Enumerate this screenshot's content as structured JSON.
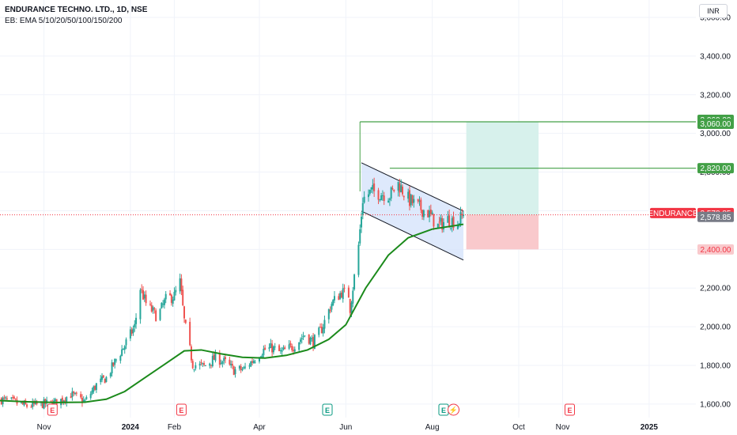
{
  "header": {
    "title": "ENDURANCE TECHNO. LTD., 1D, NSE",
    "indicator": "EB: EMA 5/10/20/50/100/150/200",
    "currency": "INR"
  },
  "colors": {
    "up": "#26a69a",
    "down": "#ef5350",
    "ema": "#1b8a1b",
    "target_line": "#43a047",
    "profit_zone": "#d7f1ec",
    "loss_zone": "#f9c9cc",
    "channel_fill": "#d6e4fb",
    "label_green": "#43a047",
    "label_red": "#f23645",
    "label_grey": "#787b86",
    "earnings_red": "#f23645",
    "earnings_green": "#089981"
  },
  "chart_data": {
    "type": "candlestick",
    "symbol": "ENDURANCE",
    "y_axis": {
      "ticks": [
        1600,
        1800,
        2000,
        2200,
        2400,
        2600,
        2800,
        3000,
        3200,
        3400,
        3600
      ],
      "tick_labels": [
        "1,600.00",
        "1,800.00",
        "2,000.00",
        "2,200.00",
        "2,400.00",
        "2,600.00",
        "2,800.00",
        "3,000.00",
        "3,200.00",
        "3,400.00",
        "3,600.00"
      ],
      "range": [
        1530,
        3690
      ]
    },
    "x_axis": {
      "labels": [
        "Nov",
        "2024",
        "Feb",
        "Apr",
        "Jun",
        "Aug",
        "Oct",
        "Nov",
        "2025"
      ],
      "label_dates": [
        "2023-11-01",
        "2024-01-01",
        "2024-02-01",
        "2024-04-01",
        "2024-06-01",
        "2024-08-01",
        "2024-10-01",
        "2024-11-01",
        "2025-01-01"
      ],
      "bold_labels": [
        "2024",
        "2025"
      ],
      "range": [
        "2023-10-01",
        "2025-02-03"
      ]
    },
    "close_path": [
      [
        "2023-10-01",
        1625
      ],
      [
        "2023-10-10",
        1612
      ],
      [
        "2023-10-20",
        1590
      ],
      [
        "2023-10-31",
        1600
      ],
      [
        "2023-11-10",
        1608
      ],
      [
        "2023-11-20",
        1650
      ],
      [
        "2023-11-30",
        1612
      ],
      [
        "2023-12-08",
        1700
      ],
      [
        "2023-12-15",
        1735
      ],
      [
        "2023-12-22",
        1830
      ],
      [
        "2023-12-28",
        1905
      ],
      [
        "2024-01-04",
        2000
      ],
      [
        "2024-01-08",
        2200
      ],
      [
        "2024-01-12",
        2120
      ],
      [
        "2024-01-20",
        2050
      ],
      [
        "2024-01-26",
        2140
      ],
      [
        "2024-02-01",
        2160
      ],
      [
        "2024-02-05",
        2230
      ],
      [
        "2024-02-08",
        2030
      ],
      [
        "2024-02-14",
        1805
      ],
      [
        "2024-02-22",
        1795
      ],
      [
        "2024-03-01",
        1840
      ],
      [
        "2024-03-08",
        1815
      ],
      [
        "2024-03-14",
        1775
      ],
      [
        "2024-03-21",
        1780
      ],
      [
        "2024-03-28",
        1830
      ],
      [
        "2024-04-04",
        1880
      ],
      [
        "2024-04-10",
        1890
      ],
      [
        "2024-04-16",
        1865
      ],
      [
        "2024-04-25",
        1900
      ],
      [
        "2024-05-03",
        1960
      ],
      [
        "2024-05-09",
        1920
      ],
      [
        "2024-05-15",
        1990
      ],
      [
        "2024-05-22",
        2120
      ],
      [
        "2024-05-29",
        2180
      ],
      [
        "2024-06-03",
        2165
      ],
      [
        "2024-06-04",
        2095
      ],
      [
        "2024-06-10",
        2420
      ],
      [
        "2024-06-13",
        2660
      ],
      [
        "2024-06-19",
        2700
      ],
      [
        "2024-06-26",
        2690
      ],
      [
        "2024-07-02",
        2680
      ],
      [
        "2024-07-08",
        2740
      ],
      [
        "2024-07-15",
        2660
      ],
      [
        "2024-07-22",
        2620
      ],
      [
        "2024-07-29",
        2590
      ],
      [
        "2024-08-05",
        2520
      ],
      [
        "2024-08-12",
        2555
      ],
      [
        "2024-08-19",
        2540
      ],
      [
        "2024-08-23",
        2578.85
      ]
    ],
    "ema_line": [
      [
        "2023-10-01",
        1618
      ],
      [
        "2023-10-20",
        1612
      ],
      [
        "2023-11-10",
        1608
      ],
      [
        "2023-11-30",
        1610
      ],
      [
        "2023-12-15",
        1625
      ],
      [
        "2023-12-28",
        1665
      ],
      [
        "2024-01-10",
        1730
      ],
      [
        "2024-01-25",
        1805
      ],
      [
        "2024-02-08",
        1875
      ],
      [
        "2024-02-20",
        1880
      ],
      [
        "2024-03-05",
        1860
      ],
      [
        "2024-03-20",
        1842
      ],
      [
        "2024-04-05",
        1838
      ],
      [
        "2024-04-20",
        1852
      ],
      [
        "2024-05-05",
        1880
      ],
      [
        "2024-05-20",
        1935
      ],
      [
        "2024-06-01",
        2010
      ],
      [
        "2024-06-15",
        2200
      ],
      [
        "2024-07-01",
        2370
      ],
      [
        "2024-07-15",
        2460
      ],
      [
        "2024-08-01",
        2505
      ],
      [
        "2024-08-23",
        2530
      ]
    ],
    "last_price": 2578.85,
    "last_date": "2024-08-23",
    "channel": {
      "upper": [
        [
          "2024-06-12",
          2848
        ],
        [
          "2024-08-23",
          2598
        ]
      ],
      "lower": [
        [
          "2024-06-12",
          2598
        ],
        [
          "2024-08-23",
          2345
        ]
      ]
    },
    "horizontal_lines": [
      {
        "price": 3060,
        "from_date": "2024-06-11"
      },
      {
        "price": 2820,
        "from_date": "2024-07-02"
      }
    ],
    "position": {
      "start_date": "2024-08-25",
      "end_date": "2024-10-15",
      "entry": 2578.85,
      "target": 3060,
      "stop": 2400
    },
    "earnings_markers": [
      {
        "date": "2023-11-07",
        "label": "E",
        "color": "red"
      },
      {
        "date": "2024-02-06",
        "label": "E",
        "color": "red"
      },
      {
        "date": "2024-05-19",
        "label": "E",
        "color": "green"
      },
      {
        "date": "2024-08-09",
        "label": "E",
        "color": "green"
      },
      {
        "date": "2024-11-06",
        "label": "E",
        "color": "red"
      }
    ],
    "dividend_markers": [
      {
        "date": "2024-08-16",
        "label": "⚡"
      }
    ],
    "price_labels": [
      {
        "text": "3,060.00",
        "price": 3070,
        "kind": "green"
      },
      {
        "text": "3,060.00",
        "price": 3050,
        "kind": "green-outline"
      },
      {
        "text": "2,820.00",
        "price": 2820,
        "kind": "green-outline"
      },
      {
        "text": "2,578.85",
        "price": 2588,
        "kind": "red"
      },
      {
        "text": "2,578.85",
        "price": 2568,
        "kind": "grey"
      },
      {
        "text": "2,400.00",
        "price": 2400,
        "kind": "red-outline"
      }
    ],
    "symbol_label": "ENDURANCE"
  }
}
